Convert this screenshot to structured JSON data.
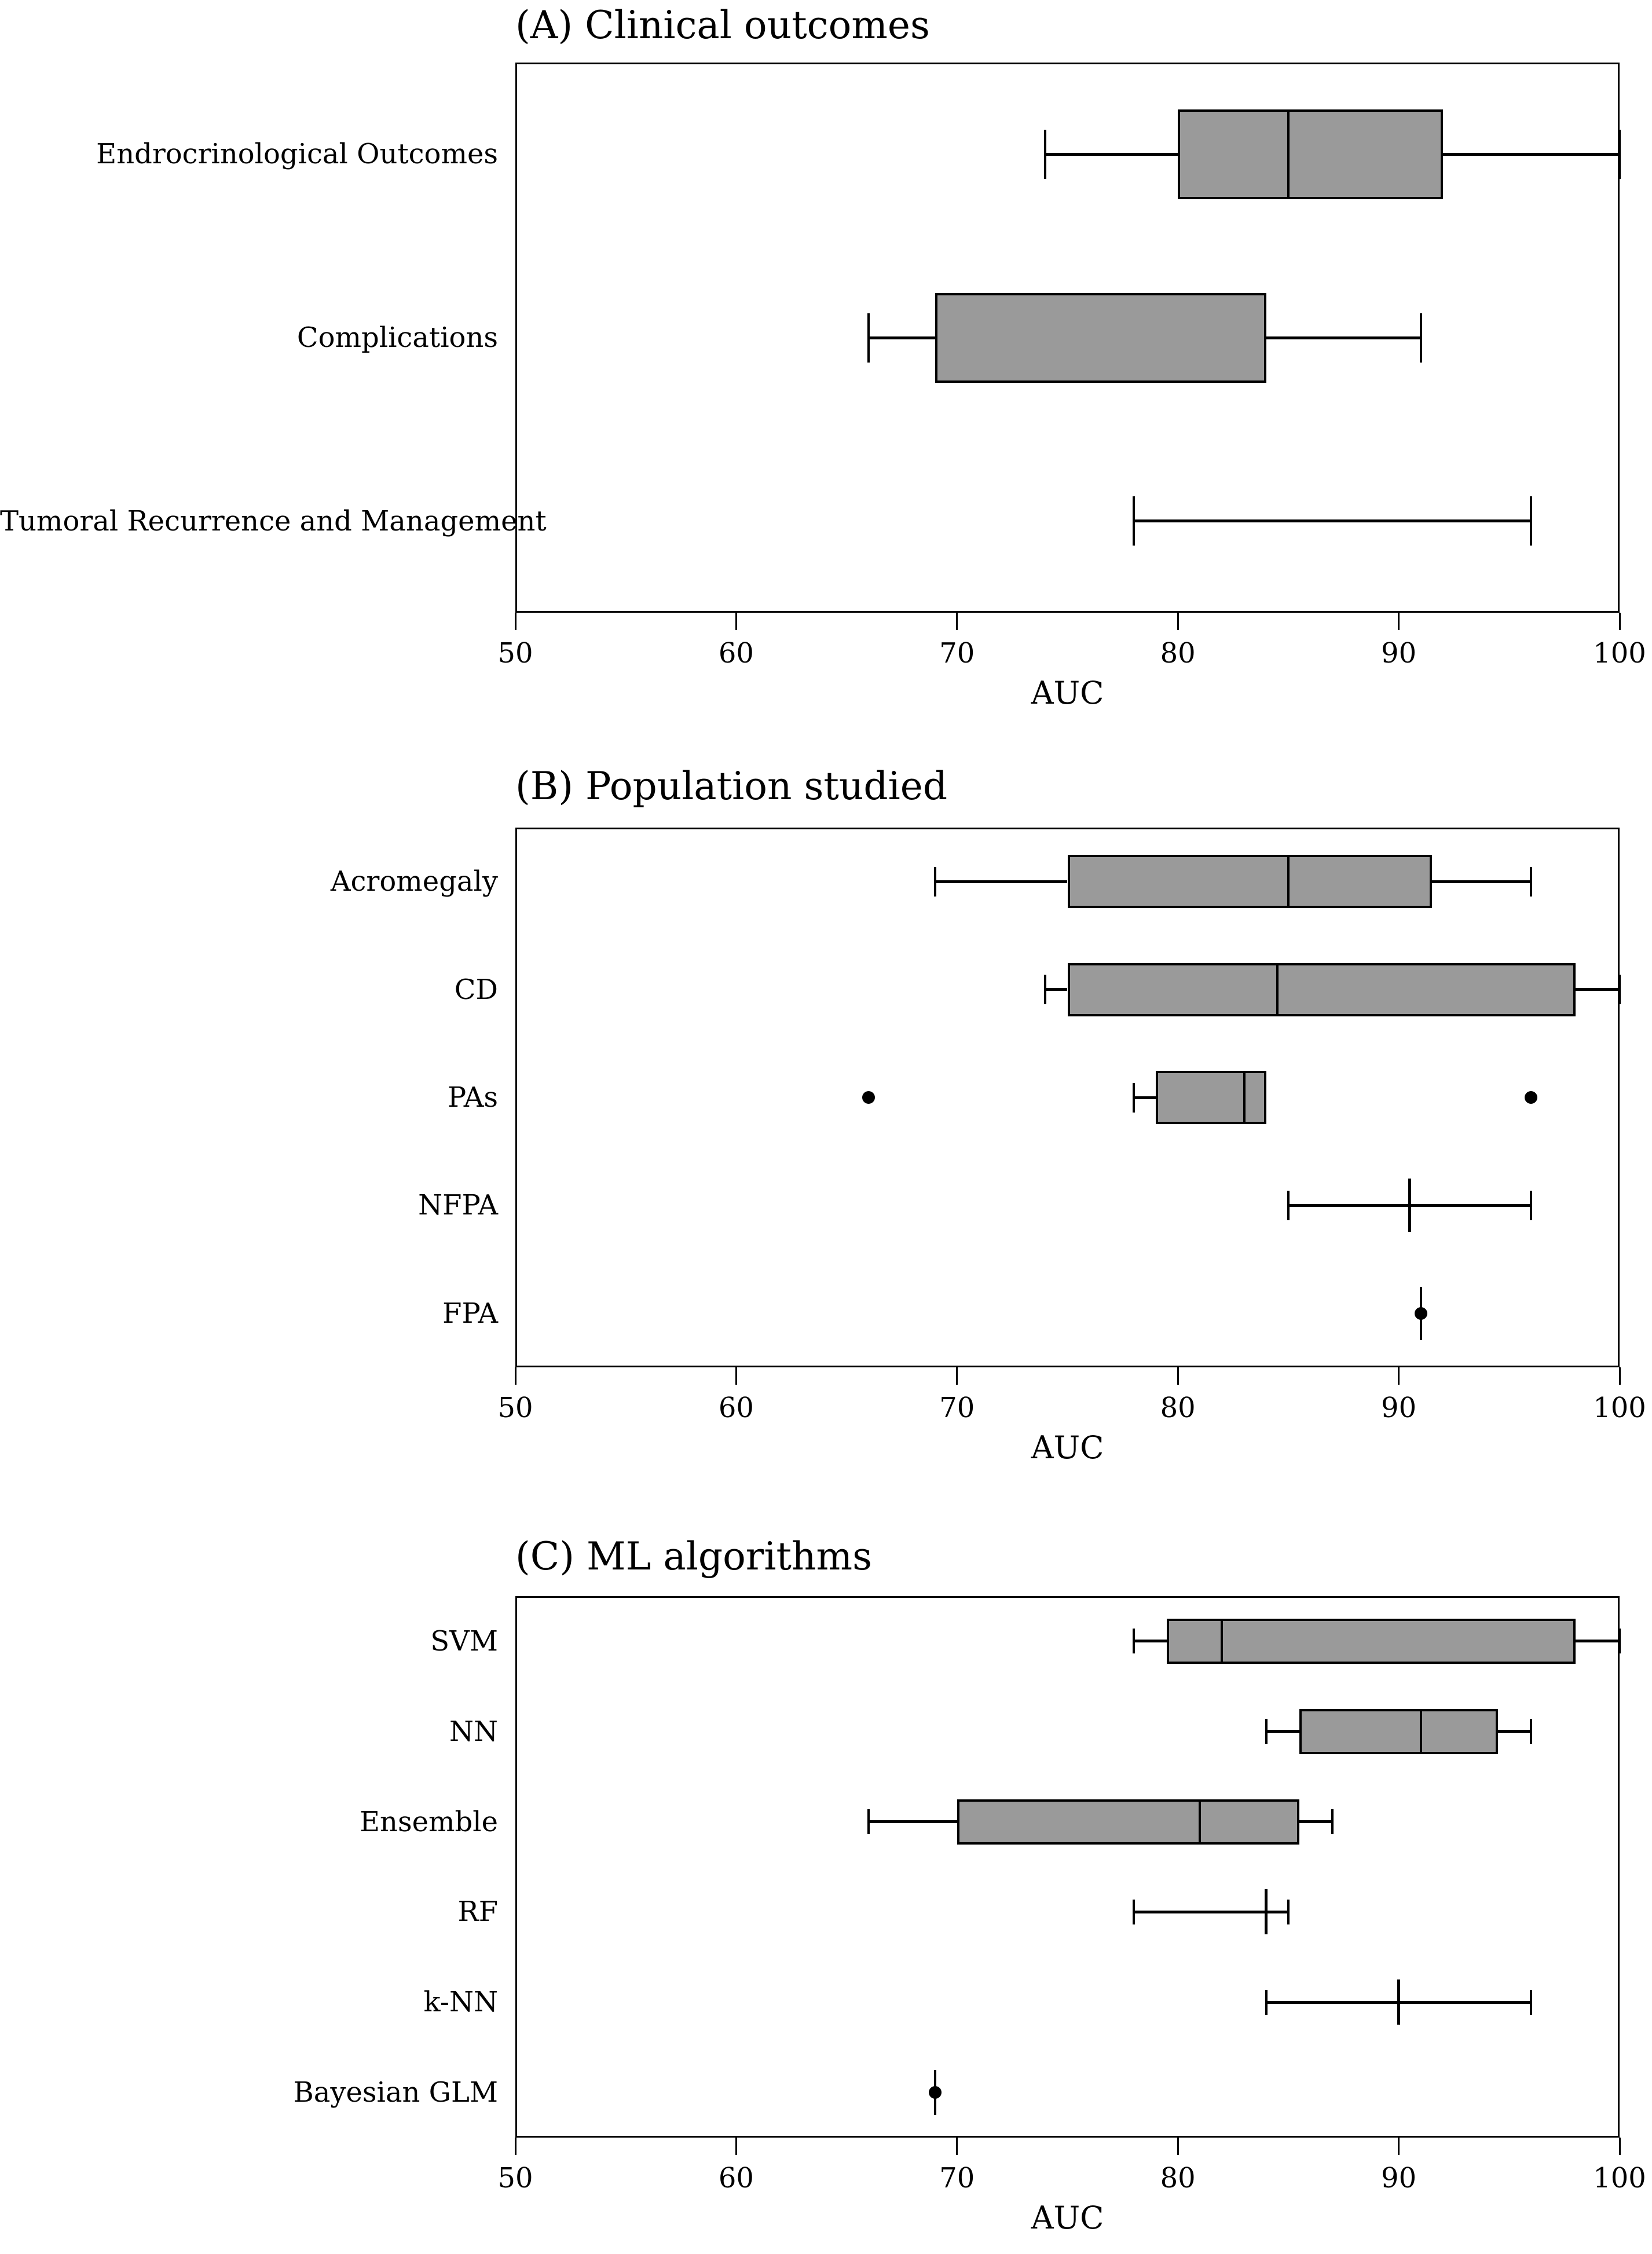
{
  "figure": {
    "background": "#ffffff",
    "text_color": "#000000",
    "box_fill_color": "#9a9a9a",
    "line_color": "#000000"
  },
  "chart_data": [
    {
      "type": "boxplot-horizontal",
      "title": "(A) Clinical outcomes",
      "xlabel": "AUC",
      "xlim": [
        50,
        100
      ],
      "xticks": [
        50,
        60,
        70,
        80,
        90,
        100
      ],
      "grid": false,
      "rows": [
        {
          "label": "Endrocrinological Outcomes",
          "kind": "box",
          "whisker_low": 74,
          "q1": 80,
          "median": 85,
          "q3": 92,
          "whisker_high": 100,
          "outliers": []
        },
        {
          "label": "Complications",
          "kind": "box",
          "whisker_low": 66,
          "q1": 69,
          "median": null,
          "q3": 84,
          "whisker_high": 91,
          "outliers": []
        },
        {
          "label": "Tumoral Recurrence and Management",
          "kind": "range",
          "whisker_low": 78,
          "median": null,
          "whisker_high": 96,
          "outliers": []
        }
      ]
    },
    {
      "type": "boxplot-horizontal",
      "title": "(B) Population studied",
      "xlabel": "AUC",
      "xlim": [
        50,
        100
      ],
      "xticks": [
        50,
        60,
        70,
        80,
        90,
        100
      ],
      "grid": false,
      "rows": [
        {
          "label": "Acromegaly",
          "kind": "box",
          "whisker_low": 69,
          "q1": 75,
          "median": 85,
          "q3": 91.5,
          "whisker_high": 96,
          "outliers": []
        },
        {
          "label": "CD",
          "kind": "box",
          "whisker_low": 74,
          "q1": 75,
          "median": 84.5,
          "q3": 98,
          "whisker_high": 100,
          "outliers": []
        },
        {
          "label": "PAs",
          "kind": "box",
          "whisker_low": 78,
          "q1": 79,
          "median": 83,
          "q3": 84,
          "whisker_high": 84,
          "outliers": [
            66,
            96
          ]
        },
        {
          "label": "NFPA",
          "kind": "range",
          "whisker_low": 85,
          "median": 90.5,
          "whisker_high": 96,
          "outliers": []
        },
        {
          "label": "FPA",
          "kind": "point",
          "median": 91,
          "outliers": [
            91
          ]
        }
      ]
    },
    {
      "type": "boxplot-horizontal",
      "title": "(C) ML algorithms",
      "xlabel": "AUC",
      "xlim": [
        50,
        100
      ],
      "xticks": [
        50,
        60,
        70,
        80,
        90,
        100
      ],
      "grid": false,
      "rows": [
        {
          "label": "SVM",
          "kind": "box",
          "whisker_low": 78,
          "q1": 79.5,
          "median": 82,
          "q3": 98,
          "whisker_high": 100,
          "outliers": []
        },
        {
          "label": "NN",
          "kind": "box",
          "whisker_low": 84,
          "q1": 85.5,
          "median": 91,
          "q3": 94.5,
          "whisker_high": 96,
          "outliers": []
        },
        {
          "label": "Ensemble",
          "kind": "box",
          "whisker_low": 66,
          "q1": 70,
          "median": 81,
          "q3": 85.5,
          "whisker_high": 87,
          "outliers": []
        },
        {
          "label": "RF",
          "kind": "range",
          "whisker_low": 78,
          "median": 84,
          "whisker_high": 85,
          "outliers": []
        },
        {
          "label": "k-NN",
          "kind": "range",
          "whisker_low": 84,
          "median": 90,
          "whisker_high": 96,
          "outliers": []
        },
        {
          "label": "Bayesian GLM",
          "kind": "point",
          "median": 69,
          "outliers": [
            69
          ]
        }
      ]
    }
  ]
}
